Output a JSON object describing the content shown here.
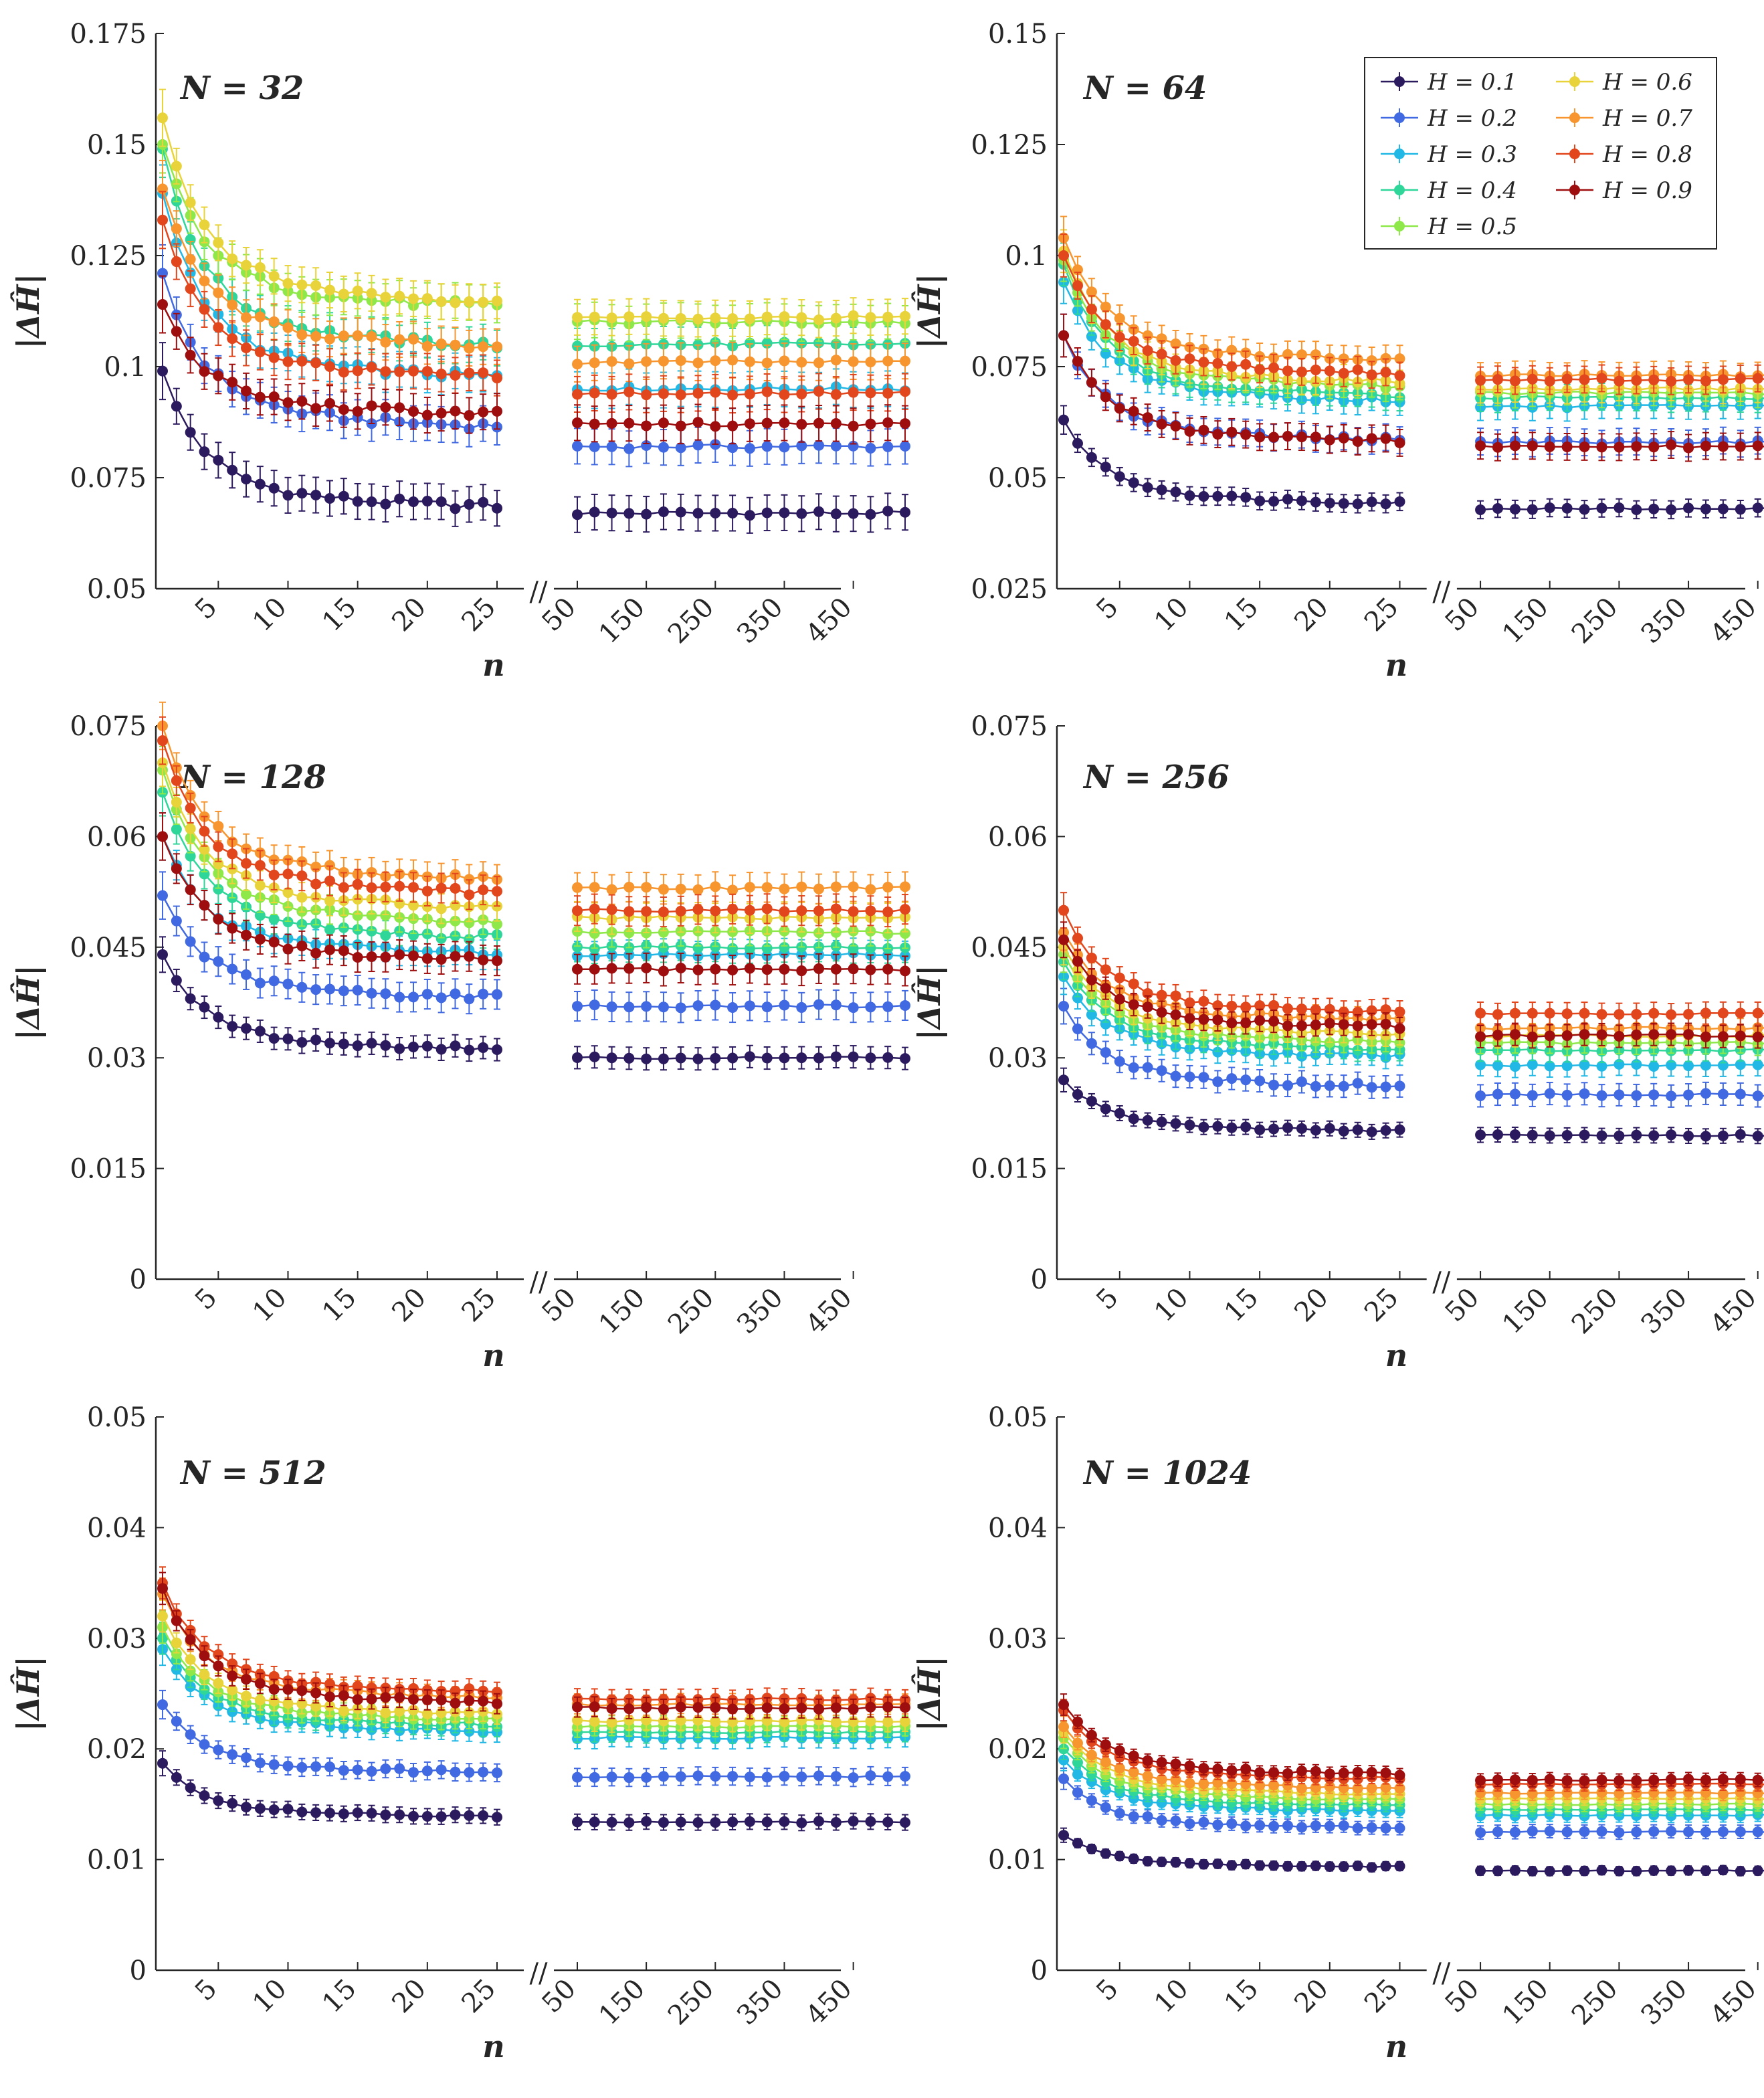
{
  "figure": {
    "ylabel": "|ΔĤ|",
    "xlabel": "n",
    "break_mark": "//"
  },
  "legend": {
    "entries": [
      "H = 0.1",
      "H = 0.2",
      "H = 0.3",
      "H = 0.4",
      "H = 0.5",
      "H = 0.6",
      "H = 0.7",
      "H = 0.8",
      "H = 0.9"
    ],
    "colors": [
      "#2c1a5e",
      "#4169e1",
      "#22b8e6",
      "#2ed69a",
      "#8ee84a",
      "#e8d43a",
      "#f7952e",
      "#e2461c",
      "#9e0e0e"
    ]
  },
  "chart_data": [
    {
      "type": "line",
      "title": "N = 32",
      "xlabel": "n",
      "ylabel": "|ΔĤ|",
      "ylim": [
        0.05,
        0.175
      ],
      "yticks": [
        "0.05",
        "0.075",
        "0.1",
        "0.125",
        "0.15",
        "0.175"
      ],
      "xticks_left": [
        "5",
        "10",
        "15",
        "20",
        "25"
      ],
      "xticks_right": [
        "50",
        "150",
        "250",
        "350",
        "450"
      ],
      "series": [
        {
          "name": "H = 0.1",
          "start": 0.099,
          "plateau": 0.068,
          "plateau_right": 0.067,
          "err": 0.004
        },
        {
          "name": "H = 0.2",
          "start": 0.121,
          "plateau": 0.086,
          "plateau_right": 0.082,
          "err": 0.004
        },
        {
          "name": "H = 0.3",
          "start": 0.139,
          "plateau": 0.097,
          "plateau_right": 0.095,
          "err": 0.004
        },
        {
          "name": "H = 0.4",
          "start": 0.149,
          "plateau": 0.104,
          "plateau_right": 0.105,
          "err": 0.004
        },
        {
          "name": "H = 0.5",
          "start": 0.15,
          "plateau": 0.113,
          "plateau_right": 0.11,
          "err": 0.004
        },
        {
          "name": "H = 0.6",
          "start": 0.156,
          "plateau": 0.114,
          "plateau_right": 0.111,
          "err": 0.004
        },
        {
          "name": "H = 0.7",
          "start": 0.14,
          "plateau": 0.104,
          "plateau_right": 0.101,
          "err": 0.004
        },
        {
          "name": "H = 0.8",
          "start": 0.133,
          "plateau": 0.097,
          "plateau_right": 0.094,
          "err": 0.004
        },
        {
          "name": "H = 0.9",
          "start": 0.114,
          "plateau": 0.089,
          "plateau_right": 0.087,
          "err": 0.004
        }
      ]
    },
    {
      "type": "line",
      "title": "N = 64",
      "xlabel": "n",
      "ylabel": "|ΔĤ|",
      "ylim": [
        0.025,
        0.15
      ],
      "yticks": [
        "0.025",
        "0.05",
        "0.075",
        "0.1",
        "0.125",
        "0.15"
      ],
      "xticks_left": [
        "5",
        "10",
        "15",
        "20",
        "25"
      ],
      "xticks_right": [
        "50",
        "150",
        "250",
        "350",
        "450"
      ],
      "series": [
        {
          "name": "H = 0.1",
          "start": 0.063,
          "plateau": 0.044,
          "plateau_right": 0.043,
          "err": 0.002
        },
        {
          "name": "H = 0.2",
          "start": 0.082,
          "plateau": 0.058,
          "plateau_right": 0.058,
          "err": 0.003
        },
        {
          "name": "H = 0.3",
          "start": 0.094,
          "plateau": 0.067,
          "plateau_right": 0.066,
          "err": 0.003
        },
        {
          "name": "H = 0.4",
          "start": 0.098,
          "plateau": 0.068,
          "plateau_right": 0.068,
          "err": 0.003
        },
        {
          "name": "H = 0.5",
          "start": 0.099,
          "plateau": 0.07,
          "plateau_right": 0.069,
          "err": 0.003
        },
        {
          "name": "H = 0.6",
          "start": 0.101,
          "plateau": 0.071,
          "plateau_right": 0.07,
          "err": 0.003
        },
        {
          "name": "H = 0.7",
          "start": 0.104,
          "plateau": 0.076,
          "plateau_right": 0.073,
          "err": 0.003
        },
        {
          "name": "H = 0.8",
          "start": 0.1,
          "plateau": 0.073,
          "plateau_right": 0.072,
          "err": 0.003
        },
        {
          "name": "H = 0.9",
          "start": 0.082,
          "plateau": 0.058,
          "plateau_right": 0.057,
          "err": 0.003
        }
      ]
    },
    {
      "type": "line",
      "title": "N = 128",
      "xlabel": "n",
      "ylabel": "|ΔĤ|",
      "ylim": [
        0,
        0.075
      ],
      "yticks": [
        "0",
        "0.015",
        "0.03",
        "0.045",
        "0.06",
        "0.075"
      ],
      "xticks_left": [
        "5",
        "10",
        "15",
        "20",
        "25"
      ],
      "xticks_right": [
        "50",
        "150",
        "250",
        "350",
        "450"
      ],
      "series": [
        {
          "name": "H = 0.1",
          "start": 0.044,
          "plateau": 0.031,
          "plateau_right": 0.03,
          "err": 0.0015
        },
        {
          "name": "H = 0.2",
          "start": 0.052,
          "plateau": 0.038,
          "plateau_right": 0.037,
          "err": 0.002
        },
        {
          "name": "H = 0.3",
          "start": 0.06,
          "plateau": 0.044,
          "plateau_right": 0.044,
          "err": 0.002
        },
        {
          "name": "H = 0.4",
          "start": 0.066,
          "plateau": 0.046,
          "plateau_right": 0.045,
          "err": 0.002
        },
        {
          "name": "H = 0.5",
          "start": 0.069,
          "plateau": 0.048,
          "plateau_right": 0.047,
          "err": 0.002
        },
        {
          "name": "H = 0.6",
          "start": 0.07,
          "plateau": 0.05,
          "plateau_right": 0.049,
          "err": 0.002
        },
        {
          "name": "H = 0.7",
          "start": 0.075,
          "plateau": 0.054,
          "plateau_right": 0.053,
          "err": 0.002
        },
        {
          "name": "H = 0.8",
          "start": 0.073,
          "plateau": 0.052,
          "plateau_right": 0.05,
          "err": 0.002
        },
        {
          "name": "H = 0.9",
          "start": 0.06,
          "plateau": 0.043,
          "plateau_right": 0.042,
          "err": 0.002
        }
      ]
    },
    {
      "type": "line",
      "title": "N = 256",
      "xlabel": "n",
      "ylabel": "|ΔĤ|",
      "ylim": [
        0,
        0.075
      ],
      "yticks": [
        "0",
        "0.015",
        "0.03",
        "0.045",
        "0.06",
        "0.075"
      ],
      "xticks_left": [
        "5",
        "10",
        "15",
        "20",
        "25"
      ],
      "xticks_right": [
        "50",
        "150",
        "250",
        "350",
        "450"
      ],
      "series": [
        {
          "name": "H = 0.1",
          "start": 0.027,
          "plateau": 0.02,
          "plateau_right": 0.0195,
          "err": 0.001
        },
        {
          "name": "H = 0.2",
          "start": 0.037,
          "plateau": 0.026,
          "plateau_right": 0.025,
          "err": 0.0015
        },
        {
          "name": "H = 0.3",
          "start": 0.041,
          "plateau": 0.03,
          "plateau_right": 0.029,
          "err": 0.0015
        },
        {
          "name": "H = 0.4",
          "start": 0.043,
          "plateau": 0.031,
          "plateau_right": 0.031,
          "err": 0.0015
        },
        {
          "name": "H = 0.5",
          "start": 0.044,
          "plateau": 0.032,
          "plateau_right": 0.032,
          "err": 0.0015
        },
        {
          "name": "H = 0.6",
          "start": 0.045,
          "plateau": 0.033,
          "plateau_right": 0.033,
          "err": 0.0015
        },
        {
          "name": "H = 0.7",
          "start": 0.047,
          "plateau": 0.035,
          "plateau_right": 0.034,
          "err": 0.0015
        },
        {
          "name": "H = 0.8",
          "start": 0.05,
          "plateau": 0.036,
          "plateau_right": 0.036,
          "err": 0.0015
        },
        {
          "name": "H = 0.9",
          "start": 0.046,
          "plateau": 0.034,
          "plateau_right": 0.033,
          "err": 0.0015
        }
      ]
    },
    {
      "type": "line",
      "title": "N = 512",
      "xlabel": "n",
      "ylabel": "|ΔĤ|",
      "ylim": [
        0,
        0.05
      ],
      "yticks": [
        "0",
        "0.01",
        "0.02",
        "0.03",
        "0.04",
        "0.05"
      ],
      "xticks_left": [
        "5",
        "10",
        "15",
        "20",
        "25"
      ],
      "xticks_right": [
        "50",
        "150",
        "250",
        "350",
        "450"
      ],
      "series": [
        {
          "name": "H = 0.1",
          "start": 0.0187,
          "plateau": 0.0138,
          "plateau_right": 0.0134,
          "err": 0.0007
        },
        {
          "name": "H = 0.2",
          "start": 0.024,
          "plateau": 0.0178,
          "plateau_right": 0.0175,
          "err": 0.0008
        },
        {
          "name": "H = 0.3",
          "start": 0.029,
          "plateau": 0.0215,
          "plateau_right": 0.021,
          "err": 0.0009
        },
        {
          "name": "H = 0.4",
          "start": 0.03,
          "plateau": 0.022,
          "plateau_right": 0.0215,
          "err": 0.0009
        },
        {
          "name": "H = 0.5",
          "start": 0.031,
          "plateau": 0.0225,
          "plateau_right": 0.022,
          "err": 0.0009
        },
        {
          "name": "H = 0.6",
          "start": 0.032,
          "plateau": 0.023,
          "plateau_right": 0.0225,
          "err": 0.0009
        },
        {
          "name": "H = 0.7",
          "start": 0.034,
          "plateau": 0.0245,
          "plateau_right": 0.024,
          "err": 0.0009
        },
        {
          "name": "H = 0.8",
          "start": 0.035,
          "plateau": 0.025,
          "plateau_right": 0.0245,
          "err": 0.0009
        },
        {
          "name": "H = 0.9",
          "start": 0.0345,
          "plateau": 0.024,
          "plateau_right": 0.0237,
          "err": 0.0009
        }
      ]
    },
    {
      "type": "line",
      "title": "N = 1024",
      "xlabel": "n",
      "ylabel": "|ΔĤ|",
      "ylim": [
        0,
        0.05
      ],
      "yticks": [
        "0",
        "0.01",
        "0.02",
        "0.03",
        "0.04",
        "0.05"
      ],
      "xticks_left": [
        "5",
        "10",
        "15",
        "20",
        "25"
      ],
      "xticks_right": [
        "50",
        "150",
        "250",
        "350",
        "450"
      ],
      "series": [
        {
          "name": "H = 0.1",
          "start": 0.0122,
          "plateau": 0.0093,
          "plateau_right": 0.009,
          "err": 0.0004
        },
        {
          "name": "H = 0.2",
          "start": 0.0173,
          "plateau": 0.0128,
          "plateau_right": 0.0125,
          "err": 0.0006
        },
        {
          "name": "H = 0.3",
          "start": 0.019,
          "plateau": 0.0143,
          "plateau_right": 0.014,
          "err": 0.0006
        },
        {
          "name": "H = 0.4",
          "start": 0.02,
          "plateau": 0.0148,
          "plateau_right": 0.0145,
          "err": 0.0006
        },
        {
          "name": "H = 0.5",
          "start": 0.021,
          "plateau": 0.0153,
          "plateau_right": 0.015,
          "err": 0.0006
        },
        {
          "name": "H = 0.6",
          "start": 0.0215,
          "plateau": 0.0158,
          "plateau_right": 0.0155,
          "err": 0.0006
        },
        {
          "name": "H = 0.7",
          "start": 0.022,
          "plateau": 0.0163,
          "plateau_right": 0.016,
          "err": 0.0006
        },
        {
          "name": "H = 0.8",
          "start": 0.0235,
          "plateau": 0.0172,
          "plateau_right": 0.0168,
          "err": 0.0006
        },
        {
          "name": "H = 0.9",
          "start": 0.024,
          "plateau": 0.0176,
          "plateau_right": 0.0172,
          "err": 0.0006
        }
      ]
    }
  ]
}
